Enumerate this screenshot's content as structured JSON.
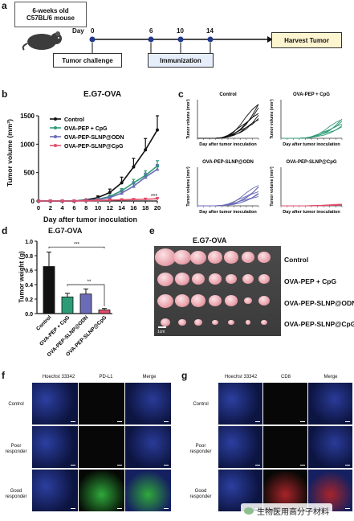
{
  "panels": {
    "a": "a",
    "b": "b",
    "c": "c",
    "d": "d",
    "e": "e",
    "f": "f",
    "g": "g"
  },
  "timeline": {
    "mouse_label_line1": "6-weeks old",
    "mouse_label_line2": "C57BL/6 mouse",
    "day_label": "Day",
    "days": [
      "0",
      "6",
      "10",
      "14"
    ],
    "challenge": "Tumor challenge",
    "immunization": "Immunization",
    "harvest": "Harvest Tumor"
  },
  "colors": {
    "control": "#111111",
    "cpg": "#2e9b77",
    "odn": "#6b6bb8",
    "slnpcpg": "#e04d6a"
  },
  "b": {
    "title": "E.G7-OVA",
    "ylabel": "Tumor volume (mm³)",
    "xlabel": "Day after tumor inoculation",
    "legend": [
      "Control",
      "OVA-PEP + CpG",
      "OVA-PEP-SLNP@ODN",
      "OVA-PEP-SLNP@CpG"
    ],
    "significance": "***"
  },
  "c": {
    "titles": [
      "Control",
      "OVA-PEP + CpG",
      "OVA-PEP-SLNP@ODN",
      "OVA-PEP-SLNP@CpG"
    ],
    "ylabel": "Tumor volume (mm³)",
    "xlabel": "Day after tumor inoculation"
  },
  "d": {
    "title": "E.G7-OVA",
    "ylabel": "Tumor weight (g)",
    "sig1": "***",
    "sig2": "**"
  },
  "e": {
    "title": "E.G7-OVA",
    "rows": [
      "Control",
      "OVA-PEP + CpG",
      "OVA-PEP-SLNP@ODN",
      "OVA-PEP-SLNP@CpG"
    ],
    "scale": "1cm"
  },
  "f": {
    "cols": [
      "Hoechst 33342",
      "PD-L1",
      "Merge"
    ],
    "rows": [
      "Control",
      "Poor responder",
      "Good responder"
    ]
  },
  "g": {
    "cols": [
      "Hoechst 33342",
      "CD8",
      "Merge"
    ],
    "rows": [
      "Control",
      "Poor responder",
      "Good responder"
    ]
  },
  "watermark": "生物医用高分子材料",
  "chart_data": [
    {
      "type": "line",
      "title": "E.G7-OVA",
      "xlabel": "Day after tumor inoculation",
      "ylabel": "Tumor volume (mm³)",
      "x": [
        0,
        2,
        4,
        6,
        8,
        10,
        12,
        14,
        16,
        18,
        20
      ],
      "xlim": [
        0,
        20
      ],
      "ylim": [
        0,
        1500
      ],
      "yticks": [
        0,
        500,
        1000,
        1500
      ],
      "series": [
        {
          "name": "Control",
          "values": [
            0,
            0,
            0,
            0,
            20,
            60,
            150,
            320,
            600,
            900,
            1250
          ],
          "error": [
            0,
            0,
            0,
            0,
            10,
            30,
            60,
            100,
            150,
            200,
            250
          ]
        },
        {
          "name": "OVA-PEP + CpG",
          "values": [
            0,
            0,
            0,
            0,
            10,
            30,
            80,
            180,
            320,
            450,
            620
          ],
          "error": [
            0,
            0,
            0,
            0,
            5,
            10,
            25,
            40,
            60,
            80,
            90
          ]
        },
        {
          "name": "OVA-PEP-SLNP@ODN",
          "values": [
            0,
            0,
            0,
            0,
            10,
            25,
            60,
            140,
            260,
            420,
            560
          ],
          "error": [
            0,
            0,
            0,
            0,
            5,
            10,
            20,
            35,
            50,
            70,
            80
          ]
        },
        {
          "name": "OVA-PEP-SLNP@CpG",
          "values": [
            0,
            0,
            0,
            0,
            5,
            10,
            15,
            20,
            25,
            30,
            40
          ],
          "error": [
            0,
            0,
            0,
            0,
            2,
            3,
            4,
            5,
            6,
            8,
            10
          ]
        }
      ]
    },
    {
      "type": "bar",
      "title": "E.G7-OVA",
      "ylabel": "Tumor weight (g)",
      "categories": [
        "Control",
        "OVA-PEP + CpG",
        "OVA-PEP-SLNP@ODN",
        "OVA-PEP-SLNP@CpG"
      ],
      "values": [
        0.65,
        0.23,
        0.27,
        0.05
      ],
      "error": [
        0.2,
        0.05,
        0.07,
        0.02
      ],
      "ylim": [
        0,
        1.0
      ],
      "yticks": [
        0,
        0.2,
        0.4,
        0.6,
        0.8,
        1.0
      ]
    }
  ]
}
